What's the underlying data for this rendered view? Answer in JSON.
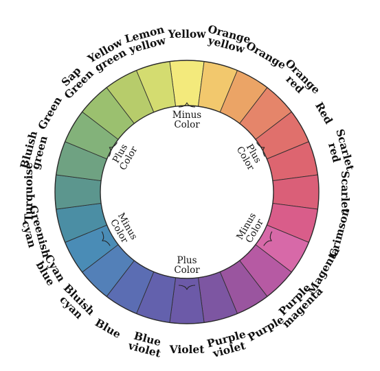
{
  "segments": [
    {
      "label": [
        "Yellow"
      ],
      "color": "#f3ea7c"
    },
    {
      "label": [
        "Orange",
        "yellow"
      ],
      "color": "#f2c86d"
    },
    {
      "label": [
        "Orange"
      ],
      "color": "#eba466"
    },
    {
      "label": [
        "Orange",
        "red"
      ],
      "color": "#e5856a"
    },
    {
      "label": [
        "Red"
      ],
      "color": "#e0706c"
    },
    {
      "label": [
        "Scarlet",
        "red"
      ],
      "color": "#dd6570"
    },
    {
      "label": [
        "Scarlet"
      ],
      "color": "#da5f78"
    },
    {
      "label": [
        "Crimson"
      ],
      "color": "#d95d8a"
    },
    {
      "label": [
        "Magenta"
      ],
      "color": "#d769a8"
    },
    {
      "label": [
        "Purple",
        "magenta"
      ],
      "color": "#b65aa3"
    },
    {
      "label": [
        "Purple"
      ],
      "color": "#9a559f"
    },
    {
      "label": [
        "Purple",
        "violet"
      ],
      "color": "#7d56a2"
    },
    {
      "label": [
        "Violet"
      ],
      "color": "#6c5aa8"
    },
    {
      "label": [
        "Blue",
        "violet"
      ],
      "color": "#6361ad"
    },
    {
      "label": [
        "Blue"
      ],
      "color": "#5b6db3"
    },
    {
      "label": [
        "Bluish",
        "cyan"
      ],
      "color": "#5380b8"
    },
    {
      "label": [
        "Cyan",
        "blue"
      ],
      "color": "#4a8cb6"
    },
    {
      "label": [
        "Greenish",
        "cyan"
      ],
      "color": "#4b8ea4"
    },
    {
      "label": [
        "Turquoise"
      ],
      "color": "#5c968e"
    },
    {
      "label": [
        "Bluish",
        "green"
      ],
      "color": "#6fa282"
    },
    {
      "label": [
        "Green"
      ],
      "color": "#83b27a"
    },
    {
      "label": [
        "Sap",
        "Green"
      ],
      "color": "#9bc06f"
    },
    {
      "label": [
        "Yellow",
        "green"
      ],
      "color": "#b7cc6b"
    },
    {
      "label": [
        "Lemon",
        "yellow"
      ],
      "color": "#d4dc70"
    }
  ],
  "inner_labels": [
    {
      "lines": [
        "Minus",
        "Color"
      ],
      "color_value": -1
    },
    {
      "lines": [
        "Plus",
        "Color"
      ],
      "color_value": 1
    },
    {
      "lines": [
        "Minus",
        "Color"
      ],
      "color_value": -1
    },
    {
      "lines": [
        "Plus",
        "Color"
      ],
      "color_value": 1
    },
    {
      "lines": [
        "Minus",
        "Color"
      ],
      "color_value": -1
    },
    {
      "lines": [
        "Plus",
        "Color"
      ],
      "color_value": 1
    }
  ]
}
